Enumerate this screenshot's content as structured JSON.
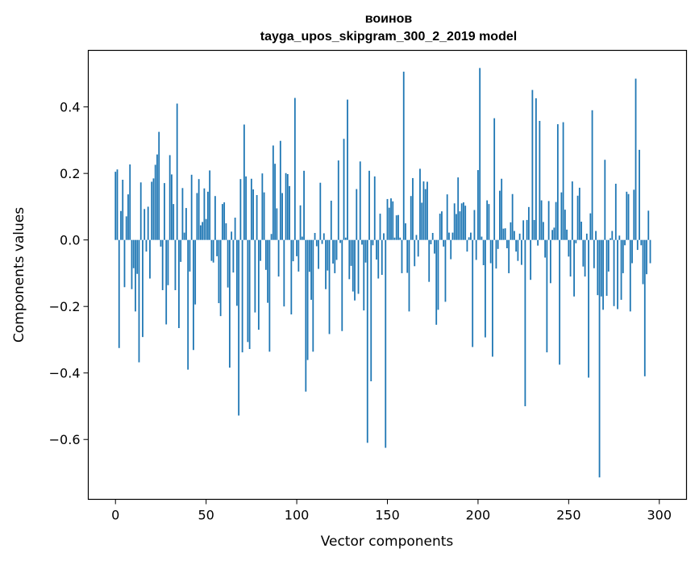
{
  "chart_data": {
    "type": "bar",
    "title": "воинов",
    "subtitle": "tayga_upos_skipgram_300_2_2019 model",
    "xlabel": "Vector components",
    "ylabel": "Components values",
    "xlim": [
      -15,
      315
    ],
    "ylim": [
      -0.78,
      0.57
    ],
    "xticks": [
      0,
      50,
      100,
      150,
      200,
      250,
      300
    ],
    "yticks": [
      -0.6,
      -0.4,
      -0.2,
      0.0,
      0.2,
      0.4
    ],
    "ytick_labels": [
      "−0.6",
      "−0.4",
      "−0.2",
      "0.0",
      "0.2",
      "0.4"
    ],
    "bar_color": "#1f77b4",
    "grid": false,
    "values": [
      0.205,
      0.212,
      -0.325,
      0.087,
      0.181,
      -0.142,
      0.071,
      0.137,
      0.227,
      -0.148,
      -0.085,
      -0.215,
      -0.102,
      -0.368,
      0.173,
      -0.292,
      0.093,
      -0.035,
      0.1,
      -0.116,
      0.175,
      0.185,
      0.226,
      0.257,
      0.325,
      -0.02,
      -0.151,
      0.171,
      -0.254,
      -0.136,
      0.255,
      0.197,
      0.108,
      -0.151,
      0.41,
      -0.265,
      -0.066,
      0.156,
      0.022,
      0.096,
      -0.39,
      -0.095,
      0.196,
      -0.331,
      -0.194,
      0.141,
      0.183,
      0.044,
      0.054,
      0.155,
      0.063,
      0.145,
      0.209,
      -0.063,
      -0.068,
      0.132,
      -0.049,
      -0.19,
      -0.229,
      0.108,
      0.113,
      0.05,
      -0.143,
      -0.384,
      0.025,
      -0.098,
      0.067,
      -0.198,
      -0.528,
      0.183,
      -0.338,
      0.347,
      0.191,
      -0.307,
      -0.328,
      0.184,
      0.152,
      -0.218,
      0.135,
      -0.27,
      -0.063,
      0.2,
      0.143,
      -0.09,
      -0.189,
      -0.336,
      0.018,
      0.284,
      0.229,
      0.095,
      -0.11,
      0.298,
      0.141,
      -0.2,
      0.201,
      0.198,
      0.162,
      -0.224,
      -0.064,
      0.427,
      -0.049,
      -0.095,
      0.104,
      0.01,
      0.208,
      -0.456,
      -0.361,
      -0.096,
      -0.18,
      -0.336,
      0.021,
      -0.019,
      -0.087,
      0.172,
      -0.012,
      0.02,
      -0.148,
      -0.092,
      -0.283,
      0.118,
      -0.071,
      -0.1,
      -0.06,
      0.239,
      -0.009,
      -0.274,
      0.304,
      0.007,
      0.422,
      -0.118,
      -0.078,
      -0.155,
      -0.182,
      0.153,
      -0.162,
      0.236,
      -0.014,
      -0.212,
      -0.068,
      -0.61,
      0.208,
      -0.425,
      -0.016,
      0.191,
      -0.059,
      -0.116,
      0.079,
      -0.105,
      0.02,
      -0.625,
      0.123,
      0.097,
      0.125,
      0.116,
      0.007,
      0.074,
      0.075,
      0.007,
      -0.1,
      0.506,
      0.05,
      -0.099,
      -0.215,
      0.132,
      0.186,
      -0.079,
      0.015,
      -0.05,
      0.214,
      0.112,
      0.176,
      0.153,
      0.175,
      -0.126,
      -0.013,
      0.021,
      -0.041,
      -0.255,
      -0.21,
      0.079,
      0.086,
      -0.02,
      -0.186,
      0.137,
      0.022,
      -0.058,
      0.022,
      0.11,
      0.078,
      0.188,
      0.086,
      0.11,
      0.113,
      0.103,
      -0.035,
      0.008,
      0.022,
      -0.322,
      0.09,
      -0.06,
      0.21,
      0.517,
      0.01,
      -0.076,
      -0.293,
      0.119,
      0.108,
      -0.07,
      -0.351,
      0.366,
      -0.086,
      -0.027,
      0.148,
      0.184,
      0.034,
      0.035,
      -0.025,
      -0.1,
      0.053,
      0.138,
      0.027,
      -0.035,
      -0.063,
      0.019,
      -0.075,
      0.059,
      -0.5,
      0.06,
      0.099,
      -0.12,
      0.451,
      0.06,
      0.426,
      -0.017,
      0.358,
      0.119,
      0.054,
      -0.053,
      -0.338,
      0.117,
      -0.13,
      0.03,
      0.037,
      0.114,
      0.348,
      -0.375,
      0.143,
      0.354,
      0.091,
      0.031,
      -0.05,
      -0.11,
      0.176,
      -0.17,
      -0.01,
      0.133,
      0.157,
      0.055,
      -0.08,
      -0.11,
      0.019,
      -0.414,
      0.08,
      0.39,
      -0.085,
      0.027,
      -0.166,
      -0.714,
      -0.17,
      -0.21,
      0.241,
      -0.168,
      -0.095,
      0.005,
      0.027,
      -0.199,
      0.169,
      -0.208,
      0.013,
      -0.18,
      -0.1,
      -0.016,
      0.145,
      0.138,
      -0.215,
      -0.07,
      0.151,
      0.485,
      -0.03,
      0.271,
      -0.016,
      -0.133,
      -0.41,
      -0.103,
      0.088,
      -0.07
    ]
  }
}
